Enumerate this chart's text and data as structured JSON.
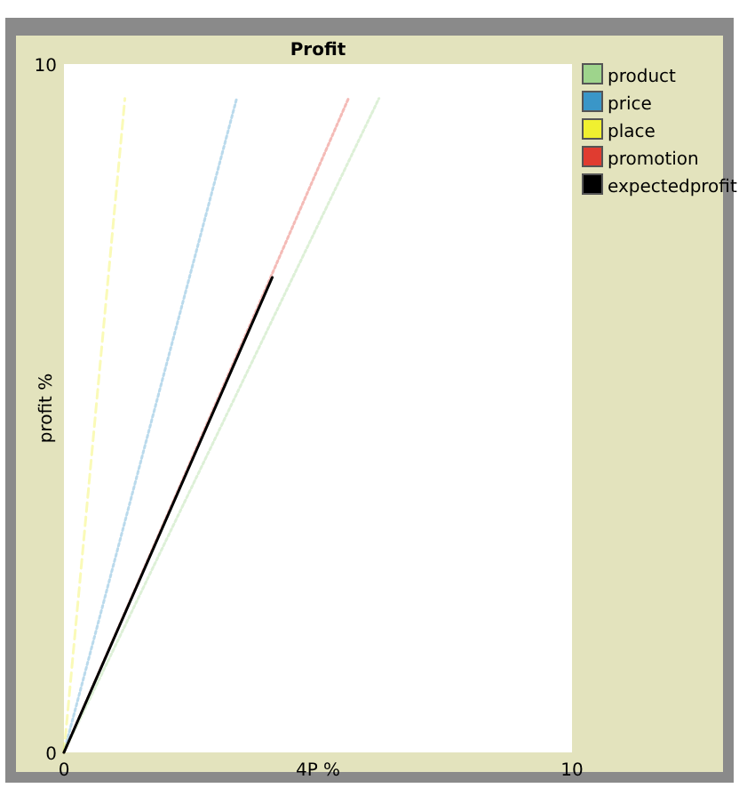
{
  "chart_data": {
    "type": "line",
    "title": "Profit",
    "xlabel": "4P %",
    "ylabel": "profit %",
    "xlim": [
      0,
      10
    ],
    "ylim": [
      0,
      10
    ],
    "xticks": [
      0,
      10
    ],
    "yticks": [
      0,
      10
    ],
    "grid": false,
    "legend": "right",
    "marker": "none",
    "series": [
      {
        "name": "product",
        "color": "#9ed48c",
        "x": [
          0,
          6.2
        ],
        "values": [
          0,
          9.5
        ],
        "line_style": "dotted"
      },
      {
        "name": "price",
        "color": "#3a96c8",
        "x": [
          0,
          3.4
        ],
        "values": [
          0,
          9.5
        ],
        "line_style": "dotted"
      },
      {
        "name": "place",
        "color": "#f0f030",
        "x": [
          0,
          1.2
        ],
        "values": [
          0,
          9.5
        ],
        "line_style": "dashed"
      },
      {
        "name": "promotion",
        "color": "#e03c30",
        "x": [
          0,
          5.6
        ],
        "values": [
          0,
          9.5
        ],
        "line_style": "dotted"
      },
      {
        "name": "expectedprofit",
        "color": "#000000",
        "x": [
          0,
          4.1
        ],
        "values": [
          0,
          6.9
        ],
        "line_style": "solid"
      }
    ]
  }
}
